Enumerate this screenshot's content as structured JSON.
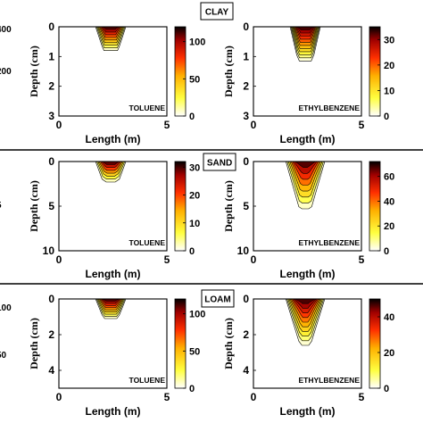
{
  "chart_data": [
    {
      "type": "heatmap",
      "section": "CLAY",
      "label": "TOLUENE",
      "xlabel": "Length (m)",
      "ylabel": "Depth (cm)",
      "xlim": [
        0,
        5
      ],
      "ylim": [
        0,
        3
      ],
      "xticks": [
        0,
        5
      ],
      "yticks": [
        0,
        1,
        2,
        3
      ],
      "colorbar": {
        "min": 0,
        "max": 120,
        "ticks": [
          0,
          50,
          100
        ]
      },
      "plume": {
        "x_top": [
          1.7,
          3.1
        ],
        "x_bottom": [
          2.0,
          2.8
        ],
        "max_depth": 0.8,
        "levels": 9
      }
    },
    {
      "type": "heatmap",
      "section": "CLAY",
      "label": "ETHYLBENZENE",
      "xlabel": "Length (m)",
      "ylabel": "Depth (cm)",
      "xlim": [
        0,
        5
      ],
      "ylim": [
        0,
        3
      ],
      "xticks": [
        0,
        5
      ],
      "yticks": [
        0,
        1,
        2,
        3
      ],
      "colorbar": {
        "min": 0,
        "max": 35,
        "ticks": [
          0,
          10,
          20,
          30
        ]
      },
      "plume": {
        "x_top": [
          1.7,
          3.1
        ],
        "x_bottom": [
          2.0,
          2.8
        ],
        "max_depth": 1.15,
        "levels": 11
      }
    },
    {
      "type": "heatmap",
      "section": "SAND",
      "label": "TOLUENE",
      "xlabel": "Length (m)",
      "ylabel": "Depth (cm)",
      "xlim": [
        0,
        5
      ],
      "ylim": [
        0,
        10
      ],
      "xticks": [
        0,
        5
      ],
      "yticks": [
        0,
        5,
        10
      ],
      "colorbar": {
        "min": 0,
        "max": 32,
        "ticks": [
          0,
          10,
          20,
          30
        ]
      },
      "plume": {
        "x_top": [
          1.7,
          3.1
        ],
        "x_bottom": [
          2.0,
          2.8
        ],
        "max_depth": 2.3,
        "levels": 7
      }
    },
    {
      "type": "heatmap",
      "section": "SAND",
      "label": "ETHYLBENZENE",
      "xlabel": "Length (m)",
      "ylabel": "Depth (cm)",
      "xlim": [
        0,
        5
      ],
      "ylim": [
        0,
        10
      ],
      "xticks": [
        0,
        5
      ],
      "yticks": [
        0,
        5,
        10
      ],
      "colorbar": {
        "min": 0,
        "max": 72,
        "ticks": [
          0,
          20,
          40,
          60
        ]
      },
      "plume": {
        "x_top": [
          1.5,
          3.3
        ],
        "x_bottom": [
          2.1,
          2.7
        ],
        "max_depth": 5.3,
        "levels": 8
      }
    },
    {
      "type": "heatmap",
      "section": "LOAM",
      "label": "TOLUENE",
      "xlabel": "Length (m)",
      "ylabel": "Depth (cm)",
      "xlim": [
        0,
        5
      ],
      "ylim": [
        0,
        5
      ],
      "xticks": [
        0,
        5
      ],
      "yticks": [
        0,
        2,
        4
      ],
      "colorbar": {
        "min": 0,
        "max": 120,
        "ticks": [
          0,
          50,
          100
        ]
      },
      "plume": {
        "x_top": [
          1.7,
          3.1
        ],
        "x_bottom": [
          2.0,
          2.8
        ],
        "max_depth": 1.1,
        "levels": 9
      }
    },
    {
      "type": "heatmap",
      "section": "LOAM",
      "label": "ETHYLBENZENE",
      "xlabel": "Length (m)",
      "ylabel": "Depth (cm)",
      "xlim": [
        0,
        5
      ],
      "ylim": [
        0,
        5
      ],
      "xticks": [
        0,
        5
      ],
      "yticks": [
        0,
        2,
        4
      ],
      "colorbar": {
        "min": 0,
        "max": 50,
        "ticks": [
          0,
          20,
          40
        ]
      },
      "plume": {
        "x_top": [
          1.5,
          3.3
        ],
        "x_bottom": [
          2.1,
          2.7
        ],
        "max_depth": 2.6,
        "levels": 10
      }
    }
  ],
  "partial_left_labels": {
    "row1": [
      "400",
      "200"
    ],
    "row2": [
      "5"
    ],
    "row3": [
      "100",
      "50"
    ]
  }
}
